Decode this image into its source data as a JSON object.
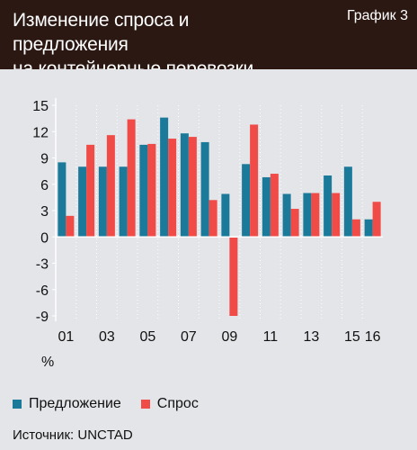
{
  "header": {
    "title_line1": "Изменение спроса и предложения",
    "title_line2": "на контейнерные перевозки",
    "badge": "График 3"
  },
  "chart_data": {
    "type": "bar",
    "ylabel": "%",
    "ylim": [
      -9,
      15
    ],
    "yticks": [
      15,
      12,
      9,
      6,
      3,
      0,
      -3,
      -6,
      -9
    ],
    "grid": "dotted vertical separators",
    "legend_placement": "bottom-left",
    "categories": [
      "01",
      "02",
      "03",
      "04",
      "05",
      "06",
      "07",
      "08",
      "09",
      "10",
      "11",
      "12",
      "13",
      "14",
      "15",
      "16"
    ],
    "tick_labels": [
      "01",
      "03",
      "05",
      "07",
      "09",
      "11",
      "13",
      "15",
      "16"
    ],
    "series": [
      {
        "name": "Предложение",
        "color": "#1b7a9a",
        "values": [
          8.5,
          8.0,
          8.0,
          8.0,
          10.5,
          13.6,
          11.8,
          10.8,
          4.9,
          8.3,
          6.8,
          4.9,
          5.0,
          7.0,
          8.0,
          2.0
        ]
      },
      {
        "name": "Спрос",
        "color": "#f04b47",
        "values": [
          2.4,
          10.5,
          11.6,
          13.4,
          10.6,
          11.2,
          11.4,
          4.2,
          -9.0,
          12.8,
          7.2,
          3.2,
          5.0,
          5.0,
          2.0,
          4.0
        ]
      }
    ]
  },
  "footer": {
    "percent_label": "%",
    "source": "Источник: UNCTAD"
  }
}
